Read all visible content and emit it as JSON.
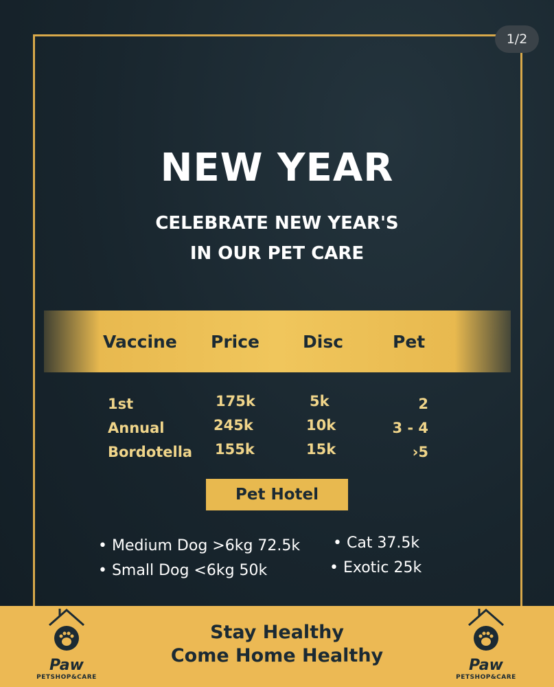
{
  "counter": "1/2",
  "title": "NEW YEAR",
  "subtitle": [
    "CELEBRATE NEW YEAR'S",
    "IN OUR PET CARE"
  ],
  "table": {
    "headers": [
      "Vaccine",
      "Price",
      "Disc",
      "Pet"
    ],
    "rows": [
      [
        "1st",
        "175k",
        "5k",
        "2"
      ],
      [
        "Annual",
        "245k",
        "10k",
        "3 - 4"
      ],
      [
        "Bordotella",
        "155k",
        "15k",
        "›5"
      ]
    ]
  },
  "hotel": {
    "label": "Pet Hotel",
    "items": [
      "• Medium Dog >6kg 72.5k",
      "• Small Dog <6kg 50k",
      "• Cat 37.5k",
      "• Exotic 25k"
    ]
  },
  "footer": {
    "slogan": [
      "Stay Healthy",
      "Come Home Healthy"
    ],
    "logo_name": "Paw",
    "logo_tag": "PETSHOP&CARE"
  },
  "colors": {
    "background": "#18252d",
    "gold": "#e8b94f",
    "text_gold": "#f0d58a"
  }
}
